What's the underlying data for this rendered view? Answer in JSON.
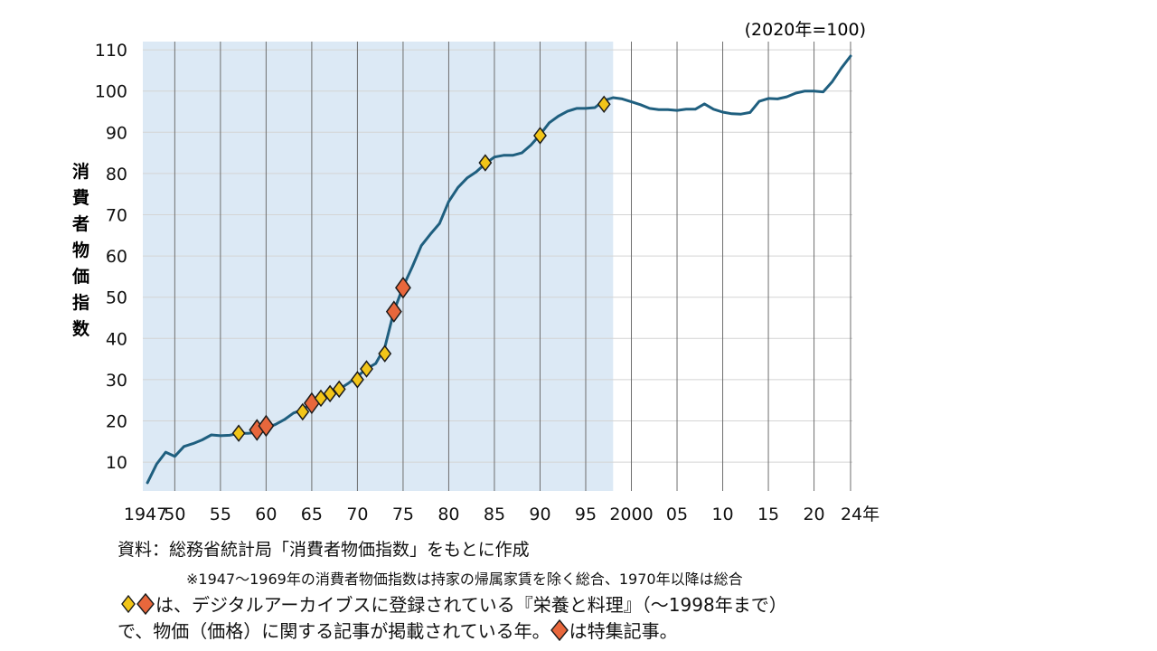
{
  "chart_data": {
    "type": "line",
    "unit_label": "(2020年=100)",
    "ylabel": "消費者物価指数",
    "ylim": [
      3,
      112
    ],
    "yticks": [
      10,
      20,
      30,
      40,
      50,
      60,
      70,
      80,
      90,
      100,
      110
    ],
    "xlim": [
      1946.5,
      2024.2
    ],
    "xticks": [
      {
        "year": 1947,
        "label": "1947"
      },
      {
        "year": 1950,
        "label": "50"
      },
      {
        "year": 1955,
        "label": "55"
      },
      {
        "year": 1960,
        "label": "60"
      },
      {
        "year": 1965,
        "label": "65"
      },
      {
        "year": 1970,
        "label": "70"
      },
      {
        "year": 1975,
        "label": "75"
      },
      {
        "year": 1980,
        "label": "80"
      },
      {
        "year": 1985,
        "label": "85"
      },
      {
        "year": 1990,
        "label": "90"
      },
      {
        "year": 1995,
        "label": "95"
      },
      {
        "year": 2000,
        "label": "2000"
      },
      {
        "year": 2005,
        "label": "05"
      },
      {
        "year": 2010,
        "label": "10"
      },
      {
        "year": 2015,
        "label": "15"
      },
      {
        "year": 2020,
        "label": "20"
      },
      {
        "year": 2024,
        "label": "24年"
      }
    ],
    "vertical_gridlines": [
      1950,
      1955,
      1960,
      1965,
      1970,
      1975,
      1980,
      1985,
      1990,
      1995,
      2000,
      2005,
      2010,
      2015,
      2020,
      2024
    ],
    "highlight_range": [
      1946.5,
      1998
    ],
    "highlight_color": "#dce9f5",
    "line_color": "#1f5f7f",
    "series": [
      {
        "x": [
          1947,
          1948,
          1949,
          1950,
          1951,
          1952,
          1953,
          1954,
          1955,
          1956,
          1957,
          1958,
          1959,
          1960,
          1961,
          1962,
          1963,
          1964,
          1965,
          1966,
          1967,
          1968,
          1969,
          1970,
          1971,
          1972,
          1973,
          1974,
          1975,
          1976,
          1977,
          1978,
          1979,
          1980,
          1981,
          1982,
          1983,
          1984,
          1985,
          1986,
          1987,
          1988,
          1989,
          1990,
          1991,
          1992,
          1993,
          1994,
          1995,
          1996,
          1997,
          1998,
          1999,
          2000,
          2001,
          2002,
          2003,
          2004,
          2005,
          2006,
          2007,
          2008,
          2009,
          2010,
          2011,
          2012,
          2013,
          2014,
          2015,
          2016,
          2017,
          2018,
          2019,
          2020,
          2021,
          2022,
          2023,
          2024
        ],
        "values": [
          5.0,
          9.5,
          12.4,
          11.4,
          13.8,
          14.5,
          15.4,
          16.6,
          16.4,
          16.5,
          17.0,
          17.0,
          17.2,
          18.3,
          19.1,
          20.3,
          21.9,
          22.7,
          24.3,
          25.4,
          26.4,
          27.7,
          29.1,
          30.8,
          32.6,
          33.9,
          37.8,
          46.6,
          52.5,
          57.3,
          62.5,
          65.3,
          67.9,
          73.2,
          76.6,
          78.9,
          80.4,
          82.4,
          84.0,
          84.4,
          84.4,
          85.0,
          86.9,
          89.4,
          92.3,
          93.9,
          95.1,
          95.8,
          95.8,
          96.0,
          97.7,
          98.4,
          98.1,
          97.4,
          96.7,
          95.8,
          95.5,
          95.5,
          95.3,
          95.6,
          95.6,
          96.9,
          95.6,
          94.9,
          94.5,
          94.4,
          94.8,
          97.5,
          98.2,
          98.1,
          98.6,
          99.5,
          100.0,
          100.0,
          99.8,
          102.3,
          105.6,
          108.5
        ]
      }
    ],
    "markers": [
      {
        "year": 1957,
        "value": 17.0,
        "type": "yellow"
      },
      {
        "year": 1959,
        "value": 17.8,
        "type": "orange"
      },
      {
        "year": 1960,
        "value": 18.8,
        "type": "orange"
      },
      {
        "year": 1964,
        "value": 22.2,
        "type": "yellow"
      },
      {
        "year": 1965,
        "value": 24.3,
        "type": "orange"
      },
      {
        "year": 1966,
        "value": 25.5,
        "type": "yellow"
      },
      {
        "year": 1967,
        "value": 26.6,
        "type": "yellow"
      },
      {
        "year": 1968,
        "value": 27.7,
        "type": "yellow"
      },
      {
        "year": 1970,
        "value": 30.0,
        "type": "yellow"
      },
      {
        "year": 1971,
        "value": 32.6,
        "type": "yellow"
      },
      {
        "year": 1973,
        "value": 36.3,
        "type": "yellow"
      },
      {
        "year": 1974,
        "value": 46.5,
        "type": "orange"
      },
      {
        "year": 1975,
        "value": 52.3,
        "type": "orange"
      },
      {
        "year": 1984,
        "value": 82.6,
        "type": "yellow"
      },
      {
        "year": 1990,
        "value": 89.2,
        "type": "yellow"
      },
      {
        "year": 1997,
        "value": 96.8,
        "type": "yellow"
      }
    ],
    "marker_colors": {
      "yellow": "#f2c518",
      "orange": "#e8673c",
      "outline": "#1b1b1b"
    }
  },
  "footer": {
    "source": "資料：総務省統計局「消費者物価指数」をもとに作成",
    "note": "※1947〜1969年の消費者物価指数は持家の帰属家賃を除く総合、1970年以降は総合",
    "legend_text_1": "は、デジタルアーカイブスに登録されている『栄養と料理』（〜1998年まで）",
    "legend_text_2_a": "で、物価（価格）に関する記事が掲載されている年。",
    "legend_text_2_b": "は特集記事。"
  }
}
